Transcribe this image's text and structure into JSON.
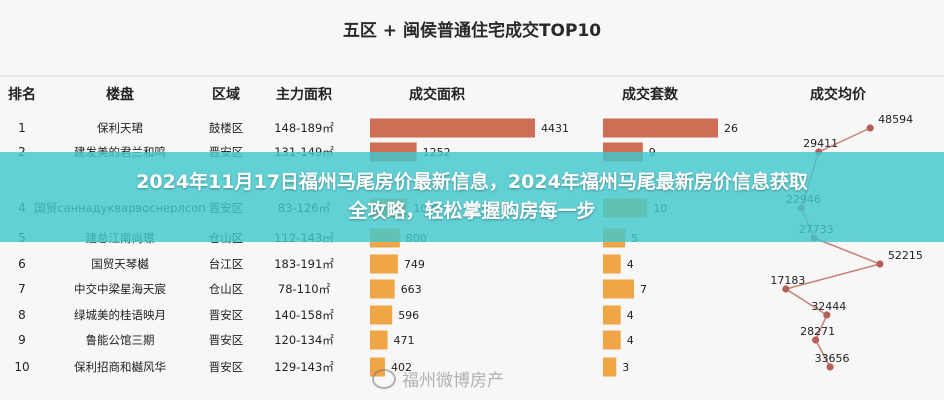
{
  "colors": {
    "area_bar": "#cd6e55",
    "count_bar": "#cd6e55",
    "low_bar": "#f0a546",
    "line": "#c87e73",
    "point": "#b65f58",
    "banner": "#40c8cd"
  },
  "chart_data": {
    "type": "table",
    "title": "五区 + 闽侯普通住宅成交TOP10",
    "columns": [
      "排名",
      "楼盘",
      "区域",
      "主力面积",
      "成交面积",
      "成交套数",
      "成交均价"
    ],
    "rows": [
      {
        "rank": "1",
        "name": "保利天珺",
        "district": "鼓楼区",
        "size": "148-189㎡",
        "area": 4431,
        "count": 26,
        "price": 48594
      },
      {
        "rank": "2",
        "name": "建发美的君兰和鸣",
        "district": "晋安区",
        "size": "131-149㎡",
        "area": 1252,
        "count": 9,
        "price": 29411
      },
      {
        "rank": "4",
        "name": "国贸саннадукварвоснерлсоп",
        "district": "晋安区",
        "size": "83-126㎡",
        "area": 1000,
        "count": 10,
        "price": 22946
      },
      {
        "rank": "5",
        "name": "建总江南尚璟",
        "district": "仓山区",
        "size": "112-143㎡",
        "area": 800,
        "count": 5,
        "price": 27733
      },
      {
        "rank": "6",
        "name": "国贸天琴樾",
        "district": "台江区",
        "size": "183-191㎡",
        "area": 749,
        "count": 4,
        "price": 52215
      },
      {
        "rank": "7",
        "name": "中交中梁星海天宸",
        "district": "仓山区",
        "size": "78-110㎡",
        "area": 663,
        "count": 7,
        "price": 17183
      },
      {
        "rank": "8",
        "name": "绿城美的桂语映月",
        "district": "晋安区",
        "size": "140-158㎡",
        "area": 596,
        "count": 4,
        "price": 32444
      },
      {
        "rank": "9",
        "name": "鲁能公馆三期",
        "district": "晋安区",
        "size": "120-134㎡",
        "area": 471,
        "count": 4,
        "price": 28271
      },
      {
        "rank": "10",
        "name": "保利招商和樾风华",
        "district": "晋安区",
        "size": "129-143㎡",
        "area": 402,
        "count": 3,
        "price": 33656
      }
    ]
  },
  "banner": {
    "line1": "2024年11月17日福州马尾房价最新信息，2024年福州马尾最新房价信息获取",
    "line2": "全攻略，轻松掌握购房每一步"
  },
  "watermark": "福州微博房产"
}
